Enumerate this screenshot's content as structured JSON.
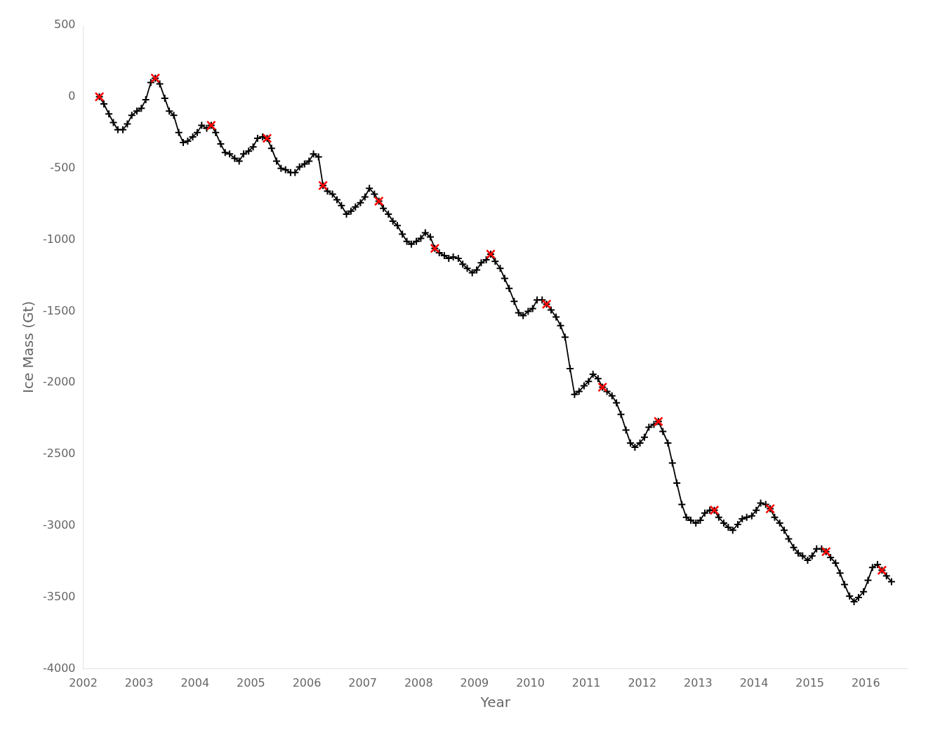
{
  "chart_data": {
    "type": "line",
    "xlabel": "Year",
    "ylabel": "Ice Mass (Gt)",
    "xlim": [
      2002.0,
      2016.75
    ],
    "ylim": [
      -4000,
      500
    ],
    "xticks": [
      2002,
      2003,
      2004,
      2005,
      2006,
      2007,
      2008,
      2009,
      2010,
      2011,
      2012,
      2013,
      2014,
      2015,
      2016
    ],
    "yticks": [
      500,
      0,
      -500,
      -1000,
      -1500,
      -2000,
      -2500,
      -3000,
      -3500,
      -4000
    ],
    "grid": false,
    "series": [
      {
        "color": "#000000",
        "marker": "plus",
        "line_style": "solid",
        "x": [
          2002.29,
          2002.37,
          2002.46,
          2002.54,
          2002.62,
          2002.71,
          2002.79,
          2002.87,
          2002.96,
          2003.04,
          2003.12,
          2003.21,
          2003.29,
          2003.37,
          2003.46,
          2003.54,
          2003.62,
          2003.71,
          2003.79,
          2003.87,
          2003.96,
          2004.04,
          2004.12,
          2004.21,
          2004.29,
          2004.37,
          2004.46,
          2004.54,
          2004.62,
          2004.71,
          2004.79,
          2004.87,
          2004.96,
          2005.04,
          2005.12,
          2005.21,
          2005.29,
          2005.37,
          2005.46,
          2005.54,
          2005.62,
          2005.71,
          2005.79,
          2005.87,
          2005.96,
          2006.04,
          2006.12,
          2006.21,
          2006.29,
          2006.37,
          2006.46,
          2006.54,
          2006.62,
          2006.71,
          2006.79,
          2006.87,
          2006.96,
          2007.04,
          2007.12,
          2007.21,
          2007.29,
          2007.37,
          2007.46,
          2007.54,
          2007.62,
          2007.71,
          2007.79,
          2007.87,
          2007.96,
          2008.04,
          2008.12,
          2008.21,
          2008.29,
          2008.37,
          2008.46,
          2008.54,
          2008.62,
          2008.71,
          2008.79,
          2008.87,
          2008.96,
          2009.04,
          2009.12,
          2009.21,
          2009.29,
          2009.37,
          2009.46,
          2009.54,
          2009.62,
          2009.71,
          2009.79,
          2009.87,
          2009.96,
          2010.04,
          2010.12,
          2010.21,
          2010.29,
          2010.37,
          2010.46,
          2010.54,
          2010.62,
          2010.71,
          2010.79,
          2010.87,
          2010.96,
          2011.04,
          2011.12,
          2011.21,
          2011.29,
          2011.37,
          2011.46,
          2011.54,
          2011.62,
          2011.71,
          2011.79,
          2011.87,
          2011.96,
          2012.04,
          2012.12,
          2012.21,
          2012.29,
          2012.37,
          2012.46,
          2012.54,
          2012.62,
          2012.71,
          2012.79,
          2012.87,
          2012.96,
          2013.04,
          2013.12,
          2013.21,
          2013.29,
          2013.37,
          2013.46,
          2013.54,
          2013.62,
          2013.71,
          2013.79,
          2013.87,
          2013.96,
          2014.04,
          2014.12,
          2014.21,
          2014.29,
          2014.37,
          2014.46,
          2014.54,
          2014.62,
          2014.71,
          2014.79,
          2014.87,
          2014.96,
          2015.04,
          2015.12,
          2015.21,
          2015.29,
          2015.37,
          2015.46,
          2015.54,
          2015.62,
          2015.71,
          2015.79,
          2015.87,
          2015.96,
          2016.04,
          2016.12,
          2016.21,
          2016.29,
          2016.37,
          2016.46
        ],
        "values": [
          0,
          -50,
          -120,
          -180,
          -230,
          -230,
          -190,
          -130,
          -100,
          -80,
          -20,
          100,
          130,
          90,
          -10,
          -100,
          -130,
          -250,
          -320,
          -310,
          -280,
          -250,
          -200,
          -220,
          -200,
          -250,
          -330,
          -390,
          -400,
          -430,
          -450,
          -400,
          -380,
          -350,
          -290,
          -280,
          -290,
          -360,
          -450,
          -500,
          -510,
          -530,
          -530,
          -490,
          -470,
          -450,
          -400,
          -420,
          -620,
          -660,
          -680,
          -720,
          -760,
          -820,
          -800,
          -770,
          -740,
          -700,
          -640,
          -680,
          -730,
          -780,
          -820,
          -870,
          -900,
          -960,
          -1010,
          -1030,
          -1010,
          -990,
          -950,
          -980,
          -1060,
          -1090,
          -1110,
          -1130,
          -1120,
          -1130,
          -1170,
          -1200,
          -1230,
          -1210,
          -1160,
          -1140,
          -1100,
          -1150,
          -1200,
          -1270,
          -1340,
          -1430,
          -1510,
          -1530,
          -1500,
          -1480,
          -1420,
          -1420,
          -1450,
          -1490,
          -1540,
          -1600,
          -1680,
          -1900,
          -2080,
          -2060,
          -2020,
          -1990,
          -1940,
          -1970,
          -2030,
          -2060,
          -2090,
          -2140,
          -2220,
          -2330,
          -2420,
          -2450,
          -2420,
          -2380,
          -2310,
          -2290,
          -2270,
          -2340,
          -2420,
          -2560,
          -2700,
          -2850,
          -2940,
          -2960,
          -2980,
          -2960,
          -2910,
          -2890,
          -2890,
          -2940,
          -2980,
          -3010,
          -3030,
          -2990,
          -2950,
          -2940,
          -2930,
          -2890,
          -2840,
          -2850,
          -2880,
          -2940,
          -2980,
          -3030,
          -3090,
          -3150,
          -3190,
          -3210,
          -3240,
          -3210,
          -3160,
          -3160,
          -3180,
          -3220,
          -3260,
          -3330,
          -3410,
          -3490,
          -3530,
          -3500,
          -3460,
          -3380,
          -3290,
          -3270,
          -3310,
          -3350,
          -3390
        ]
      },
      {
        "type": "scatter",
        "color": "#ff0000",
        "marker": "x",
        "line_style": "none",
        "x": [
          2002.29,
          2003.29,
          2004.29,
          2005.29,
          2006.29,
          2007.29,
          2008.29,
          2009.29,
          2010.29,
          2011.29,
          2012.29,
          2013.29,
          2014.29,
          2015.29,
          2016.29
        ],
        "values": [
          0,
          130,
          -200,
          -290,
          -620,
          -730,
          -1060,
          -1100,
          -1450,
          -2030,
          -2270,
          -2890,
          -2880,
          -3180,
          -3310
        ]
      }
    ]
  }
}
